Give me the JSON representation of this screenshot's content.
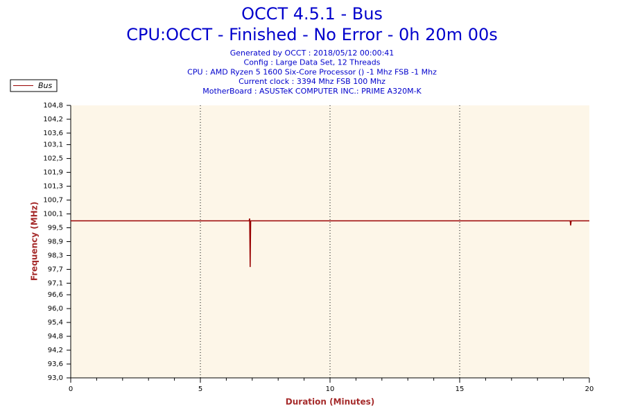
{
  "chart_data": {
    "type": "line",
    "title": "OCCT 4.5.1 - Bus",
    "subtitle": "CPU:OCCT - Finished - No Error - 0h 20m 00s",
    "info": [
      "Generated by OCCT : 2018/05/12 00:00:41",
      "Config : Large Data Set, 12 Threads",
      "CPU : AMD Ryzen 5 1600 Six-Core Processor () -1 Mhz FSB -1 Mhz",
      "Current clock : 3394 Mhz FSB 100 Mhz",
      "MotherBoard : ASUSTeK COMPUTER INC.: PRIME A320M-K"
    ],
    "x_label": "Duration (Minutes)",
    "y_label": "Frequency (MHz)",
    "x": [
      0,
      6.88,
      6.9,
      6.92,
      6.94,
      19.26,
      19.28,
      19.3,
      20
    ],
    "series": [
      {
        "name": "Bus",
        "color": "#990000",
        "values": [
          99.8,
          99.8,
          99.9,
          97.8,
          99.8,
          99.8,
          99.6,
          99.8,
          99.8
        ]
      }
    ],
    "xlim": [
      0,
      20
    ],
    "xticks": [
      0,
      5,
      10,
      15,
      20
    ],
    "ylim": [
      93,
      104.8
    ],
    "yticks": [
      {
        "value": 93.0,
        "label": "93,0"
      },
      {
        "value": 93.6,
        "label": "93,6"
      },
      {
        "value": 94.2,
        "label": "94,2"
      },
      {
        "value": 94.8,
        "label": "94,8"
      },
      {
        "value": 95.4,
        "label": "95,4"
      },
      {
        "value": 96.0,
        "label": "96,0"
      },
      {
        "value": 96.6,
        "label": "96,6"
      },
      {
        "value": 97.1,
        "label": "97,1"
      },
      {
        "value": 97.7,
        "label": "97,7"
      },
      {
        "value": 98.3,
        "label": "98,3"
      },
      {
        "value": 98.9,
        "label": "98,9"
      },
      {
        "value": 99.5,
        "label": "99,5"
      },
      {
        "value": 100.1,
        "label": "100,1"
      },
      {
        "value": 100.7,
        "label": "100,7"
      },
      {
        "value": 101.3,
        "label": "101,3"
      },
      {
        "value": 101.9,
        "label": "101,9"
      },
      {
        "value": 102.5,
        "label": "102,5"
      },
      {
        "value": 103.1,
        "label": "103,1"
      },
      {
        "value": 103.6,
        "label": "103,6"
      },
      {
        "value": 104.2,
        "label": "104,2"
      },
      {
        "value": 104.8,
        "label": "104,8"
      }
    ],
    "grid": true
  }
}
